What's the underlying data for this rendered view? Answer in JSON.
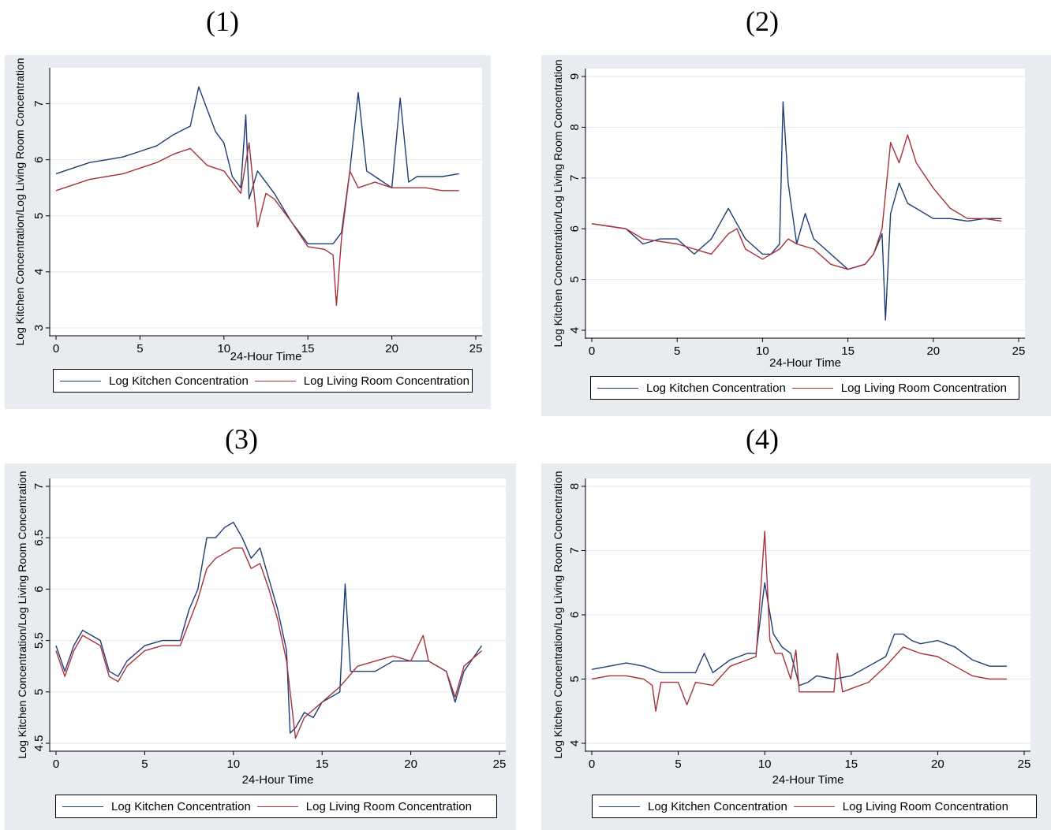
{
  "colors": {
    "kitchen": "#1e3d74",
    "living": "#a63238",
    "panel_bg": "#e8ecf1",
    "plot_bg": "#ffffff",
    "grid": "#e3e8ee"
  },
  "chart_data": [
    {
      "type": "line",
      "panel_label": "(1)",
      "xlabel": "24-Hour Time",
      "ylabel": "Log Kitchen Concentration/Log Living Room Concentration",
      "xlim": [
        0,
        25
      ],
      "ylim": [
        3,
        7.5
      ],
      "xticks": [
        0,
        5,
        10,
        15,
        20,
        25
      ],
      "yticks": [
        3,
        4,
        5,
        6,
        7
      ],
      "grid": true,
      "legend_position": "bottom",
      "series": [
        {
          "name": "Log Kitchen Concentration",
          "x": [
            0,
            1,
            2,
            3,
            4,
            5,
            6,
            7,
            8,
            8.5,
            9,
            9.5,
            10,
            10.5,
            11,
            11.3,
            11.5,
            12,
            12.5,
            13,
            14,
            15,
            16,
            16.5,
            17,
            17.5,
            18,
            18.5,
            19,
            20,
            20.5,
            21,
            21.5,
            22,
            23,
            24
          ],
          "values": [
            5.75,
            5.85,
            5.95,
            6.0,
            6.05,
            6.15,
            6.25,
            6.45,
            6.6,
            7.3,
            6.9,
            6.5,
            6.3,
            5.7,
            5.5,
            6.8,
            5.3,
            5.8,
            5.6,
            5.4,
            4.9,
            4.5,
            4.5,
            4.5,
            4.7,
            5.8,
            7.2,
            5.8,
            5.7,
            5.5,
            7.1,
            5.6,
            5.7,
            5.7,
            5.7,
            5.75
          ]
        },
        {
          "name": "Log Living Room Concentration",
          "x": [
            0,
            1,
            2,
            3,
            4,
            5,
            6,
            7,
            8,
            9,
            10,
            11,
            11.5,
            12,
            12.5,
            13,
            14,
            15,
            16,
            16.5,
            16.7,
            17,
            17.5,
            18,
            19,
            20,
            21,
            22,
            23,
            24
          ],
          "values": [
            5.45,
            5.55,
            5.65,
            5.7,
            5.75,
            5.85,
            5.95,
            6.1,
            6.2,
            5.9,
            5.8,
            5.4,
            6.3,
            4.8,
            5.4,
            5.3,
            4.9,
            4.45,
            4.4,
            4.3,
            3.4,
            4.6,
            5.8,
            5.5,
            5.6,
            5.5,
            5.5,
            5.5,
            5.45,
            5.45
          ]
        }
      ]
    },
    {
      "type": "line",
      "panel_label": "(2)",
      "xlabel": "24-Hour Time",
      "ylabel": "Log Kitchen Concentration/Log Living Room Concentration",
      "xlim": [
        0,
        25
      ],
      "ylim": [
        4,
        9
      ],
      "xticks": [
        0,
        5,
        10,
        15,
        20,
        25
      ],
      "yticks": [
        4,
        5,
        6,
        7,
        8,
        9
      ],
      "grid": true,
      "legend_position": "bottom",
      "series": [
        {
          "name": "Log Kitchen Concentration",
          "x": [
            0,
            1,
            2,
            3,
            4,
            5,
            6,
            7,
            7.5,
            8,
            8.5,
            9,
            10,
            10.5,
            11,
            11.2,
            11.5,
            12,
            12.5,
            13,
            14,
            15,
            16,
            16.5,
            17,
            17.2,
            17.5,
            18,
            18.5,
            19,
            20,
            21,
            22,
            23,
            24
          ],
          "values": [
            6.1,
            6.05,
            6.0,
            5.7,
            5.8,
            5.8,
            5.5,
            5.8,
            6.1,
            6.4,
            6.1,
            5.8,
            5.5,
            5.5,
            5.7,
            8.5,
            6.9,
            5.7,
            6.3,
            5.8,
            5.5,
            5.2,
            5.3,
            5.5,
            5.9,
            4.2,
            6.3,
            6.9,
            6.5,
            6.4,
            6.2,
            6.2,
            6.15,
            6.2,
            6.2
          ]
        },
        {
          "name": "Log Living Room Concentration",
          "x": [
            0,
            1,
            2,
            3,
            4,
            5,
            6,
            7,
            8,
            8.5,
            9,
            10,
            11,
            11.5,
            12,
            13,
            14,
            15,
            16,
            16.5,
            17,
            17.5,
            18,
            18.5,
            19,
            20,
            21,
            22,
            23,
            24
          ],
          "values": [
            6.1,
            6.05,
            6.0,
            5.8,
            5.75,
            5.7,
            5.6,
            5.5,
            5.9,
            6.0,
            5.6,
            5.4,
            5.6,
            5.8,
            5.7,
            5.6,
            5.3,
            5.2,
            5.3,
            5.5,
            6.0,
            7.7,
            7.3,
            7.85,
            7.3,
            6.8,
            6.4,
            6.2,
            6.2,
            6.15
          ]
        }
      ]
    },
    {
      "type": "line",
      "panel_label": "(3)",
      "xlabel": "24-Hour Time",
      "ylabel": "Log Kitchen Concentration/Log Living Room Concentration",
      "xlim": [
        0,
        25
      ],
      "ylim": [
        4.5,
        7
      ],
      "xticks": [
        0,
        5,
        10,
        15,
        20,
        25
      ],
      "yticks": [
        4.5,
        5,
        5.5,
        6,
        6.5,
        7
      ],
      "grid": true,
      "legend_position": "bottom",
      "series": [
        {
          "name": "Log Kitchen Concentration",
          "x": [
            0,
            0.5,
            1,
            1.5,
            2,
            2.5,
            3,
            3.5,
            4,
            5,
            6,
            7,
            7.5,
            8,
            8.5,
            9,
            9.5,
            10,
            10.5,
            11,
            11.5,
            12,
            12.5,
            13,
            13.2,
            13.5,
            14,
            14.5,
            15,
            16,
            16.3,
            16.6,
            17,
            18,
            19,
            20,
            21,
            22,
            22.5,
            23,
            24
          ],
          "values": [
            5.45,
            5.2,
            5.45,
            5.6,
            5.55,
            5.5,
            5.2,
            5.15,
            5.3,
            5.45,
            5.5,
            5.5,
            5.8,
            6.0,
            6.5,
            6.5,
            6.6,
            6.65,
            6.5,
            6.3,
            6.4,
            6.1,
            5.8,
            5.4,
            4.6,
            4.65,
            4.8,
            4.75,
            4.9,
            5.0,
            6.05,
            5.2,
            5.2,
            5.2,
            5.3,
            5.3,
            5.3,
            5.2,
            4.9,
            5.2,
            5.45
          ]
        },
        {
          "name": "Log Living Room Concentration",
          "x": [
            0,
            0.5,
            1,
            1.5,
            2,
            2.5,
            3,
            3.5,
            4,
            5,
            6,
            7,
            8,
            8.5,
            9,
            9.5,
            10,
            10.5,
            11,
            11.5,
            12,
            12.5,
            13,
            13.5,
            14,
            15,
            16,
            17,
            18,
            19,
            20,
            20.7,
            21,
            22,
            22.5,
            23,
            24
          ],
          "values": [
            5.4,
            5.15,
            5.4,
            5.55,
            5.5,
            5.45,
            5.15,
            5.1,
            5.25,
            5.4,
            5.45,
            5.45,
            5.9,
            6.2,
            6.3,
            6.35,
            6.4,
            6.4,
            6.2,
            6.25,
            6.0,
            5.7,
            5.3,
            4.55,
            4.75,
            4.9,
            5.05,
            5.25,
            5.3,
            5.35,
            5.3,
            5.55,
            5.3,
            5.2,
            4.95,
            5.25,
            5.4
          ]
        }
      ]
    },
    {
      "type": "line",
      "panel_label": "(4)",
      "xlabel": "24-Hour Time",
      "ylabel": "Log Kitchen Concentration/Log Living Room Concentration",
      "xlim": [
        0,
        25
      ],
      "ylim": [
        4,
        8
      ],
      "xticks": [
        0,
        5,
        10,
        15,
        20,
        25
      ],
      "yticks": [
        4,
        5,
        6,
        7,
        8
      ],
      "grid": true,
      "legend_position": "bottom",
      "series": [
        {
          "name": "Log Kitchen Concentration",
          "x": [
            0,
            1,
            2,
            3,
            4,
            5,
            6,
            6.5,
            7,
            8,
            9,
            9.5,
            10,
            10.5,
            11,
            11.5,
            12,
            12.5,
            13,
            14,
            15,
            16,
            17,
            17.5,
            18,
            18.5,
            19,
            20,
            21,
            22,
            23,
            24
          ],
          "values": [
            5.15,
            5.2,
            5.25,
            5.2,
            5.1,
            5.1,
            5.1,
            5.4,
            5.1,
            5.3,
            5.4,
            5.4,
            6.5,
            5.7,
            5.5,
            5.4,
            4.9,
            4.95,
            5.05,
            5.0,
            5.05,
            5.2,
            5.35,
            5.7,
            5.7,
            5.6,
            5.55,
            5.6,
            5.5,
            5.3,
            5.2,
            5.2
          ]
        },
        {
          "name": "Log Living Room Concentration",
          "x": [
            0,
            1,
            2,
            3,
            3.5,
            3.7,
            4,
            5,
            5.5,
            6,
            7,
            8,
            9,
            9.5,
            10,
            10.3,
            10.6,
            11,
            11.5,
            11.8,
            12,
            13,
            14,
            14.2,
            14.5,
            15,
            16,
            17,
            18,
            19,
            20,
            21,
            22,
            23,
            24
          ],
          "values": [
            5.0,
            5.05,
            5.05,
            5.0,
            4.9,
            4.5,
            4.95,
            4.95,
            4.6,
            4.95,
            4.9,
            5.2,
            5.3,
            5.35,
            7.3,
            5.6,
            5.4,
            5.4,
            5.0,
            5.45,
            4.8,
            4.8,
            4.8,
            5.4,
            4.8,
            4.85,
            4.95,
            5.2,
            5.5,
            5.4,
            5.35,
            5.2,
            5.05,
            5.0,
            5.0
          ]
        }
      ]
    }
  ]
}
